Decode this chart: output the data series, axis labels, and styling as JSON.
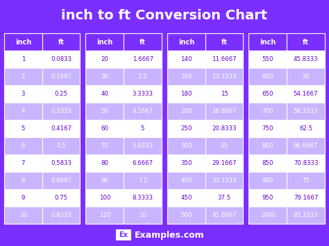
{
  "title": "inch to ft Conversion Chart",
  "bg_color": "#7B2FFF",
  "cell_bg_white": "#FFFFFF",
  "cell_bg_light": "#C8B4FF",
  "header_text_color": "#FFFFFF",
  "white_cell_text_color": "#6600CC",
  "light_cell_text_color": "#FFFFFF",
  "border_color": "#FFFFFF",
  "title_color": "#FFFFFF",
  "columns": [
    {
      "header": [
        "inch",
        "ft"
      ],
      "rows": [
        [
          "1",
          "0.0833"
        ],
        [
          "2",
          "0.1667"
        ],
        [
          "3",
          "0.25"
        ],
        [
          "4",
          "0.3333"
        ],
        [
          "5",
          "0.4167"
        ],
        [
          "6",
          "0.5"
        ],
        [
          "7",
          "0.5833"
        ],
        [
          "8",
          "0.6667"
        ],
        [
          "9",
          "0.75"
        ],
        [
          "10",
          "0.8333"
        ]
      ]
    },
    {
      "header": [
        "inch",
        "ft"
      ],
      "rows": [
        [
          "20",
          "1.6667"
        ],
        [
          "30",
          "2.5"
        ],
        [
          "40",
          "3.3333"
        ],
        [
          "50",
          "4.1667"
        ],
        [
          "60",
          "5"
        ],
        [
          "70",
          "5.8333"
        ],
        [
          "80",
          "6.6667"
        ],
        [
          "90",
          "7.5"
        ],
        [
          "100",
          "8.3333"
        ],
        [
          "120",
          "10"
        ]
      ]
    },
    {
      "header": [
        "inch",
        "ft"
      ],
      "rows": [
        [
          "140",
          "11.6667"
        ],
        [
          "160",
          "13.3333"
        ],
        [
          "180",
          "15"
        ],
        [
          "200",
          "16.6667"
        ],
        [
          "250",
          "20.8333"
        ],
        [
          "300",
          "25"
        ],
        [
          "350",
          "29.1667"
        ],
        [
          "400",
          "33.3333"
        ],
        [
          "450",
          "37.5"
        ],
        [
          "500",
          "41.6667"
        ]
      ]
    },
    {
      "header": [
        "inch",
        "ft"
      ],
      "rows": [
        [
          "550",
          "45.8333"
        ],
        [
          "600",
          "50"
        ],
        [
          "650",
          "54.1667"
        ],
        [
          "700",
          "58.3333"
        ],
        [
          "750",
          "62.5"
        ],
        [
          "800",
          "66.6667"
        ],
        [
          "850",
          "70.8333"
        ],
        [
          "900",
          "75"
        ],
        [
          "950",
          "79.1667"
        ],
        [
          "1000",
          "83.3333"
        ]
      ]
    }
  ],
  "footer_text": "Examples.com",
  "footer_ex_bg": "#FFFFFF",
  "footer_ex_color": "#7B2FFF"
}
